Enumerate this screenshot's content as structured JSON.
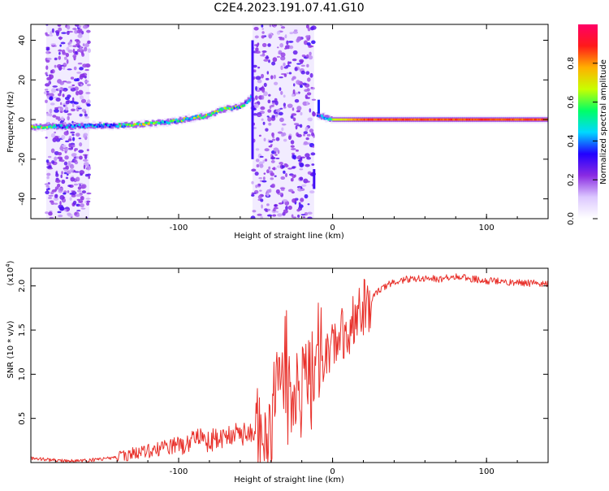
{
  "title": "C2E4.2023.191.07.41.G10",
  "chart_data": [
    {
      "type": "heatmap",
      "xlabel": "Height of straight line (km)",
      "ylabel": "Frequency (Hz)",
      "xlim": [
        -196,
        140
      ],
      "ylim": [
        -50,
        48
      ],
      "x_ticks": [
        -100,
        0,
        100
      ],
      "y_ticks": [
        -40,
        -20,
        0,
        20,
        40
      ],
      "colorbar": {
        "label": "Normalized spectral amplitude",
        "range": [
          0,
          1
        ],
        "ticks": [
          "0.0",
          "0.2",
          "0.4",
          "0.6",
          "0.8"
        ],
        "colors": [
          "#ffffff",
          "#dcc8ff",
          "#8a2be2",
          "#2200ff",
          "#00d8ff",
          "#00ff66",
          "#c8ff00",
          "#ffb000",
          "#ff1a1a",
          "#ff0066"
        ]
      },
      "ridge": [
        {
          "x": -196,
          "y": -4,
          "amp": 0.75
        },
        {
          "x": -185,
          "y": -3.5,
          "amp": 0.5
        },
        {
          "x": -170,
          "y": -3.5,
          "amp": 0.35
        },
        {
          "x": -155,
          "y": -3,
          "amp": 0.45
        },
        {
          "x": -140,
          "y": -3,
          "amp": 0.5
        },
        {
          "x": -125,
          "y": -2.5,
          "amp": 0.6
        },
        {
          "x": -110,
          "y": -1.5,
          "amp": 0.5
        },
        {
          "x": -100,
          "y": -0.5,
          "amp": 0.55
        },
        {
          "x": -90,
          "y": 1,
          "amp": 0.55
        },
        {
          "x": -80,
          "y": 2,
          "amp": 0.6
        },
        {
          "x": -72,
          "y": 5,
          "amp": 0.55
        },
        {
          "x": -65,
          "y": 6,
          "amp": 0.55
        },
        {
          "x": -58,
          "y": 7,
          "amp": 0.45
        },
        {
          "x": -52,
          "y": 12,
          "amp": 0.3
        },
        {
          "x": -8,
          "y": 2,
          "amp": 0.3
        },
        {
          "x": 0,
          "y": 0,
          "amp": 0.65
        },
        {
          "x": 20,
          "y": 0,
          "amp": 0.85
        },
        {
          "x": 50,
          "y": 0,
          "amp": 0.85
        },
        {
          "x": 80,
          "y": 0,
          "amp": 0.85
        },
        {
          "x": 110,
          "y": 0,
          "amp": 0.85
        },
        {
          "x": 140,
          "y": 0,
          "amp": 0.85
        }
      ],
      "noise_bands": [
        {
          "x_from": -186,
          "x_to": -158,
          "amp": 0.25
        },
        {
          "x_from": -52,
          "x_to": -12,
          "amp": 0.25
        }
      ]
    },
    {
      "type": "line",
      "xlabel": "Height of straight line (km)",
      "ylabel": "SNR (10 * v/v)",
      "y_multiplier": "(x10",
      "y_multiplier_exp": "4",
      "y_multiplier_close": ")",
      "xlim": [
        -196,
        140
      ],
      "ylim": [
        0,
        2.2
      ],
      "x_ticks": [
        -100,
        0,
        100
      ],
      "y_ticks": [
        "0.5",
        "1.0",
        "1.5",
        "2.0"
      ],
      "color": "#e8302a",
      "series": [
        {
          "x": [
            -196,
            -185,
            -175,
            -165,
            -155,
            -145,
            -135,
            -125,
            -115,
            -105,
            -95,
            -90,
            -87,
            -85,
            -80,
            -70,
            -60,
            -50,
            -42,
            -38,
            -35,
            -30,
            -25,
            -20,
            -15,
            -10,
            -5,
            0,
            5,
            10,
            15,
            20,
            25,
            30,
            35,
            40,
            50,
            60,
            70,
            80,
            85,
            90,
            100,
            110,
            120,
            130,
            140
          ],
          "y": [
            0.05,
            0.03,
            0.02,
            0.02,
            0.03,
            0.05,
            0.08,
            0.12,
            0.15,
            0.18,
            0.2,
            0.25,
            0.3,
            0.25,
            0.25,
            0.3,
            0.3,
            0.3,
            0.4,
            0.6,
            0.7,
            0.7,
            0.8,
            0.8,
            0.9,
            1.0,
            1.2,
            1.35,
            1.45,
            1.55,
            1.65,
            1.75,
            1.85,
            1.95,
            2.0,
            2.05,
            2.08,
            2.08,
            2.08,
            2.1,
            2.1,
            2.08,
            2.06,
            2.05,
            2.04,
            2.03,
            2.02
          ]
        }
      ]
    }
  ]
}
